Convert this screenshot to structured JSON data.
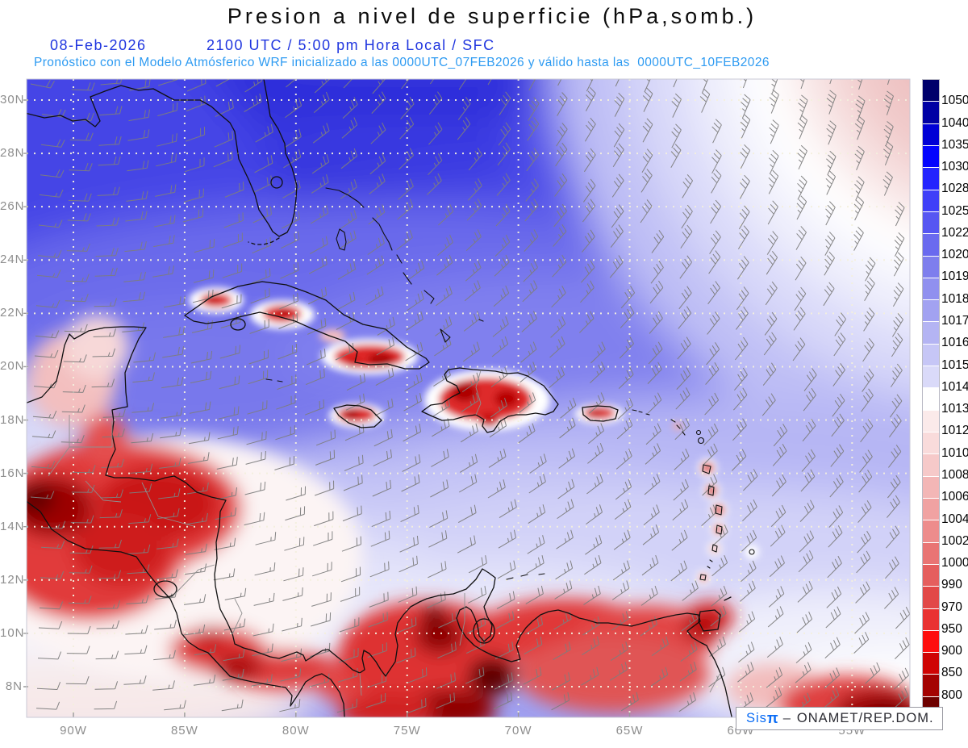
{
  "header": {
    "title": "Presion a nivel de superficie (hPa,somb.)",
    "date": "08-Feb-2026",
    "time_line": "2100 UTC / 5:00 pm Hora Local / SFC",
    "forecast_line": "Pronóstico con el Modelo Atmósferico WRF inicializado a las 0000UTC_07FEB2026 y válido hasta las  0000UTC_10FEB2026"
  },
  "map": {
    "lat_labels": [
      "30N",
      "28N",
      "26N",
      "24N",
      "22N",
      "20N",
      "18N",
      "16N",
      "14N",
      "12N",
      "10N",
      "8N"
    ],
    "lon_labels": [
      "90W",
      "85W",
      "80W",
      "75W",
      "70W",
      "65W",
      "60W",
      "55W"
    ]
  },
  "colorbar": {
    "levels": [
      1050,
      1040,
      1035,
      1030,
      1028,
      1025,
      1022,
      1020,
      1019,
      1018,
      1017,
      1016,
      1015,
      1014,
      1013,
      1012,
      1010,
      1008,
      1006,
      1004,
      1002,
      1000,
      990,
      970,
      950,
      900,
      850,
      800
    ],
    "segment_colors": [
      "#00006B",
      "#0000A4",
      "#0000D6",
      "#0404FE",
      "#2424FE",
      "#4040F8",
      "#5656F2",
      "#6A6AEF",
      "#7E7EED",
      "#9090EF",
      "#A2A2F1",
      "#B4B4F3",
      "#C6C6F6",
      "#DADAF9",
      "#FFFFFF",
      "#FBEAEA",
      "#F9DBDB",
      "#F6C9C9",
      "#F3B6B6",
      "#F0A2A2",
      "#ED8C8C",
      "#E97474",
      "#E55E5E",
      "#E24848",
      "#E93232",
      "#FE0E0E",
      "#CF0404",
      "#A40202",
      "#6E0000"
    ]
  },
  "watermark": {
    "brand": "Sis",
    "pi": "π",
    "separator": "–",
    "org": "ONAMET/REP.DOM."
  },
  "chart_data": {
    "type": "heatmap",
    "title": "Presion a nivel de superficie (hPa,somb.)",
    "variable": "surface pressure",
    "units": "hPa",
    "x_axis": {
      "label": "longitude",
      "ticks": [
        "90W",
        "85W",
        "80W",
        "75W",
        "70W",
        "65W",
        "60W",
        "55W"
      ]
    },
    "y_axis": {
      "label": "latitude",
      "ticks": [
        "30N",
        "28N",
        "26N",
        "24N",
        "22N",
        "20N",
        "18N",
        "16N",
        "14N",
        "12N",
        "10N",
        "8N"
      ]
    },
    "legend_levels_hpa": [
      1050,
      1040,
      1035,
      1030,
      1028,
      1025,
      1022,
      1020,
      1019,
      1018,
      1017,
      1016,
      1015,
      1014,
      1013,
      1012,
      1010,
      1008,
      1006,
      1004,
      1002,
      1000,
      990,
      970,
      950,
      900,
      850,
      800
    ],
    "legend_position": "right",
    "overlay": "wind barbs (gray), dotted graticule every 2° lat / 5° lon",
    "pattern": "high pressure (blue, ~1030 hPa) over Gulf of Mexico and NW Atlantic; lower pressure (red) over Central America, Hispaniola, Cuba interior and northern South America"
  }
}
